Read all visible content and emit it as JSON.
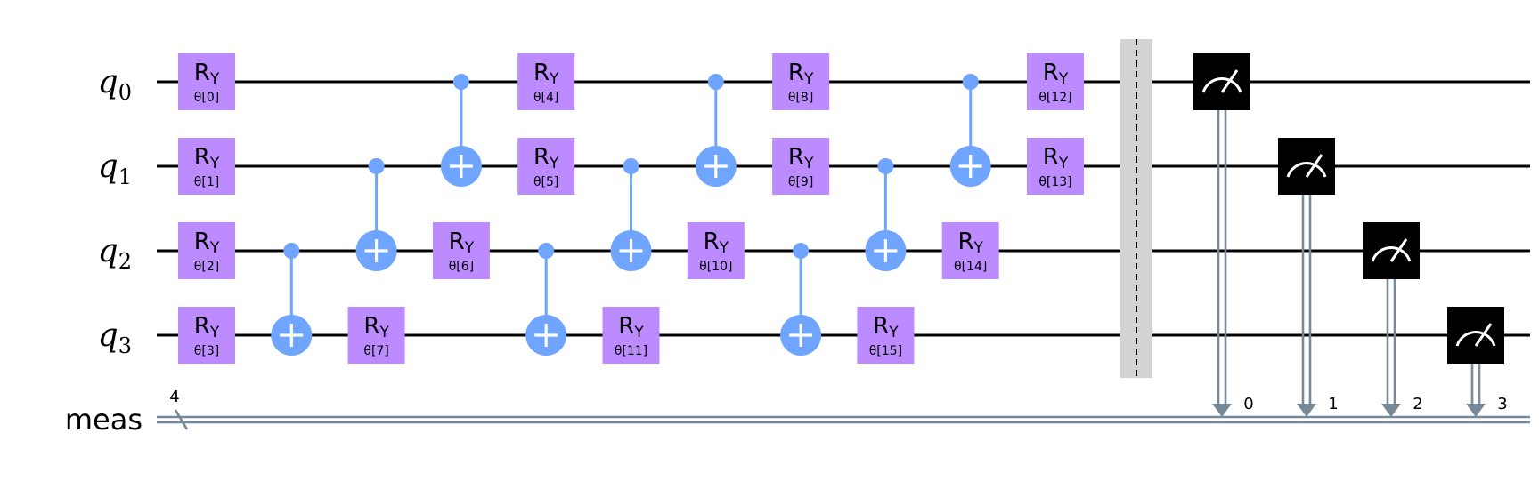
{
  "qubits": [
    {
      "name": "q",
      "index": "0"
    },
    {
      "name": "q",
      "index": "1"
    },
    {
      "name": "q",
      "index": "2"
    },
    {
      "name": "q",
      "index": "3"
    }
  ],
  "classical_register": {
    "label": "meas",
    "width_label": "4"
  },
  "gate_label": {
    "main": "R",
    "sub": "Y"
  },
  "ry_gates": [
    {
      "qubit": 0,
      "step": 0,
      "param": "θ[0]"
    },
    {
      "qubit": 1,
      "step": 0,
      "param": "θ[1]"
    },
    {
      "qubit": 2,
      "step": 0,
      "param": "θ[2]"
    },
    {
      "qubit": 3,
      "step": 0,
      "param": "θ[3]"
    },
    {
      "qubit": 3,
      "step": 2,
      "param": "θ[7]"
    },
    {
      "qubit": 2,
      "step": 3,
      "param": "θ[6]"
    },
    {
      "qubit": 0,
      "step": 4,
      "param": "θ[4]"
    },
    {
      "qubit": 1,
      "step": 4,
      "param": "θ[5]"
    },
    {
      "qubit": 3,
      "step": 5,
      "param": "θ[11]"
    },
    {
      "qubit": 2,
      "step": 6,
      "param": "θ[10]"
    },
    {
      "qubit": 0,
      "step": 7,
      "param": "θ[8]"
    },
    {
      "qubit": 1,
      "step": 7,
      "param": "θ[9]"
    },
    {
      "qubit": 3,
      "step": 8,
      "param": "θ[15]"
    },
    {
      "qubit": 2,
      "step": 9,
      "param": "θ[14]"
    },
    {
      "qubit": 0,
      "step": 10,
      "param": "θ[12]"
    },
    {
      "qubit": 1,
      "step": 10,
      "param": "θ[13]"
    }
  ],
  "cx_gates": [
    {
      "control": 2,
      "target": 3,
      "step": 1
    },
    {
      "control": 1,
      "target": 2,
      "step": 2
    },
    {
      "control": 0,
      "target": 1,
      "step": 3
    },
    {
      "control": 2,
      "target": 3,
      "step": 4
    },
    {
      "control": 1,
      "target": 2,
      "step": 5
    },
    {
      "control": 0,
      "target": 1,
      "step": 6
    },
    {
      "control": 2,
      "target": 3,
      "step": 7
    },
    {
      "control": 1,
      "target": 2,
      "step": 8
    },
    {
      "control": 0,
      "target": 1,
      "step": 9
    }
  ],
  "measurements": [
    {
      "qubit": 0,
      "clbit_label": "0"
    },
    {
      "qubit": 1,
      "clbit_label": "1"
    },
    {
      "qubit": 2,
      "clbit_label": "2"
    },
    {
      "qubit": 3,
      "clbit_label": "3"
    }
  ],
  "colors": {
    "ry_gate": "#bb8bff",
    "cx_gate": "#6fa4ff",
    "measure_box": "#000000",
    "classical_wire": "#778899",
    "barrier": "#d3d3d3"
  }
}
